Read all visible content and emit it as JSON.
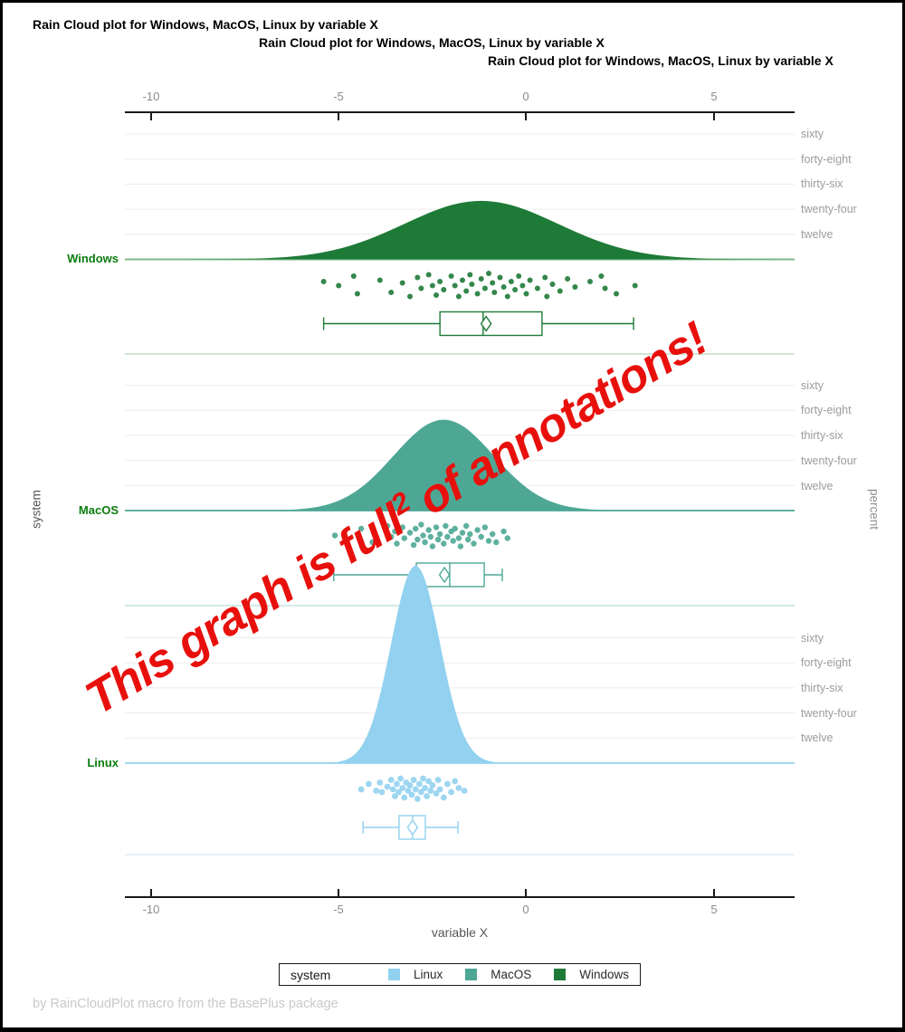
{
  "titles": [
    "Rain Cloud plot for Windows, MacOS, Linux by variable X",
    "Rain Cloud plot for Windows, MacOS, Linux by variable X",
    "Rain Cloud plot for Windows, MacOS, Linux by variable X"
  ],
  "footnote": "by RainCloudPlot macro from the BasePlus package",
  "annotation": {
    "prefix": "This graph is full",
    "sup": "2",
    "suffix": " of annotations!",
    "color": "#e8100c"
  },
  "axes": {
    "x": {
      "label": "variable X",
      "ticks": [
        "-10",
        "-5",
        "0",
        "5"
      ],
      "tick_values": [
        -10,
        -5,
        0,
        5
      ],
      "range": [
        -10.7,
        7.15
      ]
    },
    "y": {
      "label": "system",
      "categories": [
        "Windows",
        "MacOS",
        "Linux"
      ]
    },
    "percent": {
      "label": "percent",
      "ticks": [
        "sixty",
        "forty-eight",
        "thirty-six",
        "twenty-four",
        "twelve"
      ],
      "tick_values": [
        60,
        48,
        36,
        24,
        12
      ]
    }
  },
  "legend": {
    "title": "system",
    "items": [
      {
        "label": "Linux",
        "color": "#92d1ef"
      },
      {
        "label": "MacOS",
        "color": "#4ea795"
      },
      {
        "label": "Windows",
        "color": "#1e7a37"
      }
    ]
  },
  "chart_data": {
    "type": "raincloud",
    "title": "Rain Cloud plot for Windows, MacOS, Linux by variable X",
    "xlabel": "variable X",
    "ylabel_left": "system",
    "ylabel_right": "percent",
    "x_ticks": [
      -10,
      -5,
      0,
      5
    ],
    "x_range": [
      -10.7,
      7.15
    ],
    "percent_ticks": [
      12,
      24,
      36,
      48,
      60
    ],
    "grid_color": "#ececec",
    "series": [
      {
        "name": "Windows",
        "color": "#1e7a37",
        "line_color": "#7db989",
        "band_line_color": "#b3d7be",
        "point_radius": 3.0,
        "density": {
          "mean": -1.2,
          "sd": 2.05,
          "peak_percent": 28
        },
        "box": {
          "whisker_low": -5.4,
          "q1": -2.3,
          "median": -1.15,
          "q3": 0.42,
          "whisker_high": 2.86,
          "mean": -1.07
        },
        "points": [
          [
            -5.4,
            0.35
          ],
          [
            -5.0,
            0.5
          ],
          [
            -4.6,
            0.15
          ],
          [
            -4.5,
            0.8
          ],
          [
            -3.9,
            0.3
          ],
          [
            -3.6,
            0.75
          ],
          [
            -3.3,
            0.4
          ],
          [
            -3.1,
            0.9
          ],
          [
            -2.9,
            0.2
          ],
          [
            -2.8,
            0.6
          ],
          [
            -2.6,
            0.1
          ],
          [
            -2.5,
            0.5
          ],
          [
            -2.4,
            0.85
          ],
          [
            -2.3,
            0.35
          ],
          [
            -2.2,
            0.65
          ],
          [
            -2.0,
            0.15
          ],
          [
            -1.9,
            0.5
          ],
          [
            -1.8,
            0.9
          ],
          [
            -1.7,
            0.3
          ],
          [
            -1.6,
            0.7
          ],
          [
            -1.5,
            0.1
          ],
          [
            -1.45,
            0.45
          ],
          [
            -1.3,
            0.8
          ],
          [
            -1.2,
            0.25
          ],
          [
            -1.1,
            0.6
          ],
          [
            -1.0,
            0.05
          ],
          [
            -0.9,
            0.4
          ],
          [
            -0.85,
            0.75
          ],
          [
            -0.7,
            0.2
          ],
          [
            -0.6,
            0.55
          ],
          [
            -0.5,
            0.9
          ],
          [
            -0.4,
            0.35
          ],
          [
            -0.3,
            0.65
          ],
          [
            -0.2,
            0.15
          ],
          [
            -0.1,
            0.5
          ],
          [
            0.0,
            0.8
          ],
          [
            0.1,
            0.3
          ],
          [
            0.3,
            0.6
          ],
          [
            0.5,
            0.2
          ],
          [
            0.55,
            0.9
          ],
          [
            0.7,
            0.45
          ],
          [
            0.9,
            0.7
          ],
          [
            1.1,
            0.25
          ],
          [
            1.3,
            0.55
          ],
          [
            1.7,
            0.35
          ],
          [
            2.0,
            0.15
          ],
          [
            2.1,
            0.6
          ],
          [
            2.4,
            0.8
          ],
          [
            2.9,
            0.5
          ]
        ]
      },
      {
        "name": "MacOS",
        "color": "#4ea795",
        "line_color": "#63b2a4",
        "band_line_color": "#b8ded6",
        "point_radius": 3.2,
        "density": {
          "mean": -2.2,
          "sd": 1.33,
          "peak_percent": 43.5
        },
        "box": {
          "whisker_low": -5.13,
          "q1": -2.93,
          "median": -2.04,
          "q3": -1.12,
          "whisker_high": -0.64,
          "mean": -2.18
        },
        "points": [
          [
            -5.1,
            0.45
          ],
          [
            -4.4,
            0.2
          ],
          [
            -4.1,
            0.7
          ],
          [
            -3.7,
            0.1
          ],
          [
            -3.6,
            0.5
          ],
          [
            -3.5,
            0.3
          ],
          [
            -3.45,
            0.75
          ],
          [
            -3.3,
            0.15
          ],
          [
            -3.25,
            0.55
          ],
          [
            -3.1,
            0.35
          ],
          [
            -3.0,
            0.8
          ],
          [
            -2.95,
            0.2
          ],
          [
            -2.9,
            0.6
          ],
          [
            -2.8,
            0.05
          ],
          [
            -2.75,
            0.45
          ],
          [
            -2.7,
            0.7
          ],
          [
            -2.6,
            0.25
          ],
          [
            -2.55,
            0.5
          ],
          [
            -2.5,
            0.85
          ],
          [
            -2.4,
            0.15
          ],
          [
            -2.35,
            0.6
          ],
          [
            -2.3,
            0.4
          ],
          [
            -2.2,
            0.75
          ],
          [
            -2.15,
            0.1
          ],
          [
            -2.1,
            0.5
          ],
          [
            -2.0,
            0.3
          ],
          [
            -1.95,
            0.65
          ],
          [
            -1.9,
            0.2
          ],
          [
            -1.8,
            0.55
          ],
          [
            -1.75,
            0.85
          ],
          [
            -1.7,
            0.35
          ],
          [
            -1.6,
            0.1
          ],
          [
            -1.55,
            0.6
          ],
          [
            -1.5,
            0.4
          ],
          [
            -1.4,
            0.75
          ],
          [
            -1.3,
            0.25
          ],
          [
            -1.2,
            0.5
          ],
          [
            -1.1,
            0.15
          ],
          [
            -1.0,
            0.65
          ],
          [
            -0.9,
            0.4
          ],
          [
            -0.8,
            0.7
          ],
          [
            -0.6,
            0.3
          ],
          [
            -0.5,
            0.55
          ]
        ]
      },
      {
        "name": "Linux",
        "color": "#92d1ef",
        "line_color": "#a4d9f2",
        "band_line_color": "#d3ecf9",
        "point_radius": 3.4,
        "density": {
          "mean": -2.95,
          "sd": 0.65,
          "peak_percent": 94.5
        },
        "box": {
          "whisker_low": -4.35,
          "q1": -3.39,
          "median": -3.03,
          "q3": -2.69,
          "whisker_high": -1.82,
          "mean": -3.03
        },
        "points": [
          [
            -4.4,
            0.5
          ],
          [
            -4.2,
            0.3
          ],
          [
            -4.0,
            0.55
          ],
          [
            -3.9,
            0.25
          ],
          [
            -3.85,
            0.6
          ],
          [
            -3.7,
            0.4
          ],
          [
            -3.6,
            0.15
          ],
          [
            -3.55,
            0.5
          ],
          [
            -3.5,
            0.75
          ],
          [
            -3.45,
            0.3
          ],
          [
            -3.4,
            0.6
          ],
          [
            -3.35,
            0.1
          ],
          [
            -3.3,
            0.45
          ],
          [
            -3.25,
            0.8
          ],
          [
            -3.2,
            0.25
          ],
          [
            -3.15,
            0.55
          ],
          [
            -3.1,
            0.35
          ],
          [
            -3.05,
            0.7
          ],
          [
            -3.0,
            0.15
          ],
          [
            -2.95,
            0.5
          ],
          [
            -2.9,
            0.85
          ],
          [
            -2.85,
            0.3
          ],
          [
            -2.8,
            0.6
          ],
          [
            -2.75,
            0.1
          ],
          [
            -2.7,
            0.45
          ],
          [
            -2.65,
            0.75
          ],
          [
            -2.6,
            0.2
          ],
          [
            -2.55,
            0.55
          ],
          [
            -2.5,
            0.35
          ],
          [
            -2.4,
            0.65
          ],
          [
            -2.35,
            0.15
          ],
          [
            -2.3,
            0.5
          ],
          [
            -2.2,
            0.8
          ],
          [
            -2.1,
            0.3
          ],
          [
            -2.0,
            0.6
          ],
          [
            -1.9,
            0.2
          ],
          [
            -1.8,
            0.45
          ],
          [
            -1.65,
            0.55
          ]
        ]
      }
    ]
  }
}
